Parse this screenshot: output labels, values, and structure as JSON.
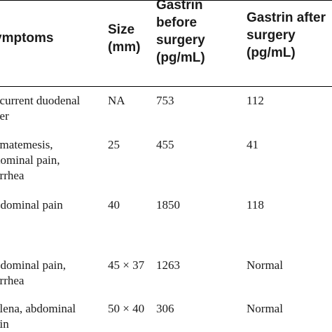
{
  "table": {
    "headers": {
      "symptoms": [
        "ymptoms"
      ],
      "size": [
        "Size",
        "(mm)"
      ],
      "gastrin_before": [
        "Gastrin",
        "before",
        "surgery",
        "(pg/mL)"
      ],
      "gastrin_after": [
        "Gastrin after",
        "surgery",
        "(pg/mL)"
      ]
    },
    "rows": [
      {
        "symptoms": [
          "ecurrent duodenal",
          "cer"
        ],
        "size": "NA",
        "before": "753",
        "after": "112"
      },
      {
        "symptoms": [
          "ematemesis,",
          "dominal pain,",
          "arrhea"
        ],
        "size": "25",
        "before": "455",
        "after": "41"
      },
      {
        "symptoms": [
          "bdominal pain"
        ],
        "size": "40",
        "before": "1850",
        "after": "118"
      },
      {
        "symptoms": [
          "bdominal pain,",
          "arrhea"
        ],
        "size": "45 × 37",
        "before": "1263",
        "after": "Normal"
      },
      {
        "symptoms": [
          "elena, abdominal",
          "ain"
        ],
        "size": "50 × 40",
        "before": "306",
        "after": "Normal"
      }
    ]
  }
}
